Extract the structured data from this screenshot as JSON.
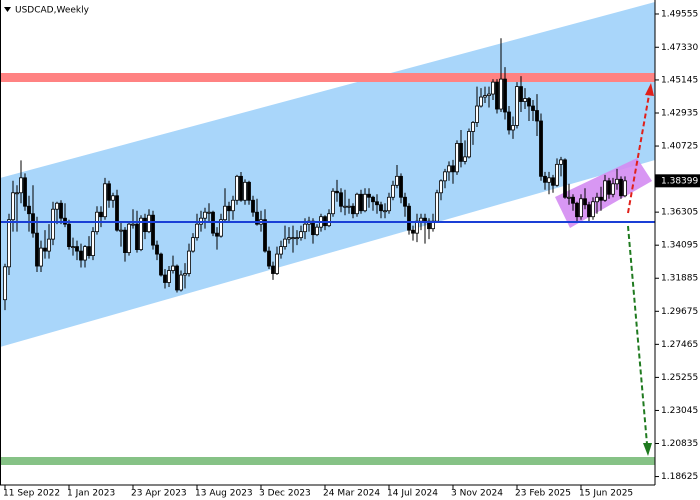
{
  "chart_data": {
    "type": "candlestick",
    "title": "USDCAD,Weekly",
    "color": "#000000",
    "categories": [
      "11 Sep 2022",
      null,
      null,
      null,
      null,
      null,
      null,
      null,
      null,
      null,
      null,
      null,
      null,
      null,
      null,
      null,
      "1 Jan 2023",
      null,
      null,
      null,
      null,
      null,
      null,
      null,
      null,
      null,
      null,
      null,
      null,
      null,
      null,
      null,
      "23 Apr 2023",
      null,
      null,
      null,
      null,
      null,
      null,
      null,
      null,
      null,
      null,
      null,
      null,
      null,
      null,
      null,
      "13 Aug 2023",
      null,
      null,
      null,
      null,
      null,
      null,
      null,
      null,
      null,
      null,
      null,
      null,
      null,
      null,
      null,
      "3 Dec 2023",
      null,
      null,
      null,
      null,
      null,
      null,
      null,
      null,
      null,
      null,
      null,
      null,
      null,
      null,
      null,
      "24 Mar 2024",
      null,
      null,
      null,
      null,
      null,
      null,
      null,
      null,
      null,
      null,
      null,
      null,
      null,
      null,
      null,
      "14 Jul 2024",
      null,
      null,
      null,
      null,
      null,
      null,
      null,
      null,
      null,
      null,
      null,
      null,
      null,
      null,
      null,
      "3 Nov 2024",
      null,
      null,
      null,
      null,
      null,
      null,
      null,
      null,
      null,
      null,
      null,
      null,
      null,
      null,
      null,
      "23 Feb 2025",
      null,
      null,
      null,
      null,
      null,
      null,
      null,
      null,
      null,
      null,
      null,
      null,
      null,
      null,
      null,
      "15 Jun 2025",
      null,
      null,
      null,
      null,
      null,
      null,
      null,
      null,
      null,
      null,
      null
    ],
    "candles": [
      [
        1.3045,
        1.3285,
        1.2975,
        1.3265
      ],
      [
        1.3265,
        1.362,
        1.321,
        1.358
      ],
      [
        1.358,
        1.384,
        1.35,
        1.376
      ],
      [
        1.376,
        1.381,
        1.35,
        1.376
      ],
      [
        1.376,
        1.3977,
        1.369,
        1.386
      ],
      [
        1.386,
        1.389,
        1.364,
        1.367
      ],
      [
        1.367,
        1.374,
        1.35,
        1.362
      ],
      [
        1.362,
        1.381,
        1.346,
        1.349
      ],
      [
        1.349,
        1.36,
        1.323,
        1.327
      ],
      [
        1.327,
        1.344,
        1.323,
        1.339
      ],
      [
        1.339,
        1.351,
        1.332,
        1.337
      ],
      [
        1.337,
        1.355,
        1.332,
        1.345
      ],
      [
        1.345,
        1.37,
        1.341,
        1.365
      ],
      [
        1.365,
        1.37,
        1.355,
        1.369
      ],
      [
        1.369,
        1.371,
        1.355,
        1.359
      ],
      [
        1.359,
        1.369,
        1.353,
        1.355
      ],
      [
        1.355,
        1.358,
        1.338,
        1.34
      ],
      [
        1.34,
        1.346,
        1.334,
        1.34
      ],
      [
        1.34,
        1.344,
        1.331,
        1.337
      ],
      [
        1.337,
        1.342,
        1.326,
        1.331
      ],
      [
        1.331,
        1.341,
        1.326,
        1.34
      ],
      [
        1.34,
        1.347,
        1.332,
        1.334
      ],
      [
        1.334,
        1.353,
        1.331,
        1.35
      ],
      [
        1.35,
        1.367,
        1.348,
        1.363
      ],
      [
        1.363,
        1.367,
        1.353,
        1.36
      ],
      [
        1.36,
        1.386,
        1.358,
        1.382
      ],
      [
        1.382,
        1.384,
        1.366,
        1.371
      ],
      [
        1.371,
        1.376,
        1.366,
        1.374
      ],
      [
        1.374,
        1.378,
        1.35,
        1.351
      ],
      [
        1.351,
        1.356,
        1.34,
        1.351
      ],
      [
        1.351,
        1.353,
        1.33,
        1.336
      ],
      [
        1.336,
        1.357,
        1.334,
        1.355
      ],
      [
        1.355,
        1.365,
        1.352,
        1.355
      ],
      [
        1.355,
        1.364,
        1.336,
        1.338
      ],
      [
        1.338,
        1.361,
        1.337,
        1.359
      ],
      [
        1.359,
        1.362,
        1.345,
        1.35
      ],
      [
        1.35,
        1.365,
        1.349,
        1.361
      ],
      [
        1.361,
        1.364,
        1.338,
        1.341
      ],
      [
        1.341,
        1.344,
        1.331,
        1.335
      ],
      [
        1.335,
        1.336,
        1.32,
        1.321
      ],
      [
        1.321,
        1.325,
        1.312,
        1.316
      ],
      [
        1.316,
        1.327,
        1.313,
        1.324
      ],
      [
        1.324,
        1.334,
        1.322,
        1.327
      ],
      [
        1.327,
        1.328,
        1.3093,
        1.311
      ],
      [
        1.311,
        1.324,
        1.31,
        1.321
      ],
      [
        1.321,
        1.329,
        1.312,
        1.322
      ],
      [
        1.322,
        1.342,
        1.32,
        1.337
      ],
      [
        1.337,
        1.349,
        1.336,
        1.346
      ],
      [
        1.346,
        1.362,
        1.344,
        1.355
      ],
      [
        1.355,
        1.364,
        1.35,
        1.359
      ],
      [
        1.359,
        1.366,
        1.352,
        1.363
      ],
      [
        1.363,
        1.369,
        1.356,
        1.363
      ],
      [
        1.363,
        1.364,
        1.347,
        1.349
      ],
      [
        1.349,
        1.353,
        1.338,
        1.347
      ],
      [
        1.347,
        1.362,
        1.346,
        1.358
      ],
      [
        1.358,
        1.379,
        1.356,
        1.367
      ],
      [
        1.367,
        1.37,
        1.357,
        1.364
      ],
      [
        1.364,
        1.374,
        1.358,
        1.371
      ],
      [
        1.371,
        1.388,
        1.368,
        1.387
      ],
      [
        1.387,
        1.3899,
        1.37,
        1.371
      ],
      [
        1.371,
        1.385,
        1.368,
        1.383
      ],
      [
        1.383,
        1.384,
        1.368,
        1.371
      ],
      [
        1.371,
        1.374,
        1.36,
        1.363
      ],
      [
        1.363,
        1.372,
        1.354,
        1.355
      ],
      [
        1.355,
        1.364,
        1.35,
        1.358
      ],
      [
        1.358,
        1.365,
        1.336,
        1.337
      ],
      [
        1.337,
        1.34,
        1.325,
        1.327
      ],
      [
        1.327,
        1.33,
        1.3178,
        1.322
      ],
      [
        1.322,
        1.34,
        1.321,
        1.335
      ],
      [
        1.335,
        1.344,
        1.332,
        1.34
      ],
      [
        1.34,
        1.354,
        1.338,
        1.345
      ],
      [
        1.345,
        1.353,
        1.342,
        1.346
      ],
      [
        1.346,
        1.354,
        1.336,
        1.346
      ],
      [
        1.346,
        1.351,
        1.341,
        1.346
      ],
      [
        1.346,
        1.354,
        1.344,
        1.35
      ],
      [
        1.35,
        1.359,
        1.345,
        1.355
      ],
      [
        1.355,
        1.36,
        1.35,
        1.357
      ],
      [
        1.357,
        1.359,
        1.342,
        1.348
      ],
      [
        1.348,
        1.355,
        1.347,
        1.353
      ],
      [
        1.353,
        1.362,
        1.35,
        1.36
      ],
      [
        1.36,
        1.361,
        1.351,
        1.354
      ],
      [
        1.354,
        1.365,
        1.353,
        1.362
      ],
      [
        1.362,
        1.379,
        1.36,
        1.377
      ],
      [
        1.377,
        1.3846,
        1.37,
        1.376
      ],
      [
        1.376,
        1.379,
        1.363,
        1.367
      ],
      [
        1.367,
        1.378,
        1.361,
        1.367
      ],
      [
        1.367,
        1.372,
        1.362,
        1.367
      ],
      [
        1.367,
        1.369,
        1.359,
        1.362
      ],
      [
        1.362,
        1.376,
        1.36,
        1.375
      ],
      [
        1.375,
        1.378,
        1.362,
        1.364
      ],
      [
        1.364,
        1.379,
        1.363,
        1.375
      ],
      [
        1.375,
        1.379,
        1.366,
        1.373
      ],
      [
        1.373,
        1.374,
        1.364,
        1.37
      ],
      [
        1.37,
        1.375,
        1.362,
        1.368
      ],
      [
        1.368,
        1.37,
        1.359,
        1.364
      ],
      [
        1.364,
        1.369,
        1.359,
        1.364
      ],
      [
        1.364,
        1.376,
        1.362,
        1.373
      ],
      [
        1.373,
        1.384,
        1.371,
        1.381
      ],
      [
        1.381,
        1.3946,
        1.379,
        1.387
      ],
      [
        1.387,
        1.389,
        1.369,
        1.373
      ],
      [
        1.373,
        1.376,
        1.36,
        1.367
      ],
      [
        1.367,
        1.369,
        1.348,
        1.351
      ],
      [
        1.351,
        1.354,
        1.344,
        1.349
      ],
      [
        1.349,
        1.362,
        1.343,
        1.357
      ],
      [
        1.357,
        1.362,
        1.351,
        1.359
      ],
      [
        1.359,
        1.362,
        1.342,
        1.357
      ],
      [
        1.357,
        1.359,
        1.345,
        1.352
      ],
      [
        1.352,
        1.362,
        1.35,
        1.357
      ],
      [
        1.357,
        1.378,
        1.356,
        1.376
      ],
      [
        1.376,
        1.385,
        1.371,
        1.384
      ],
      [
        1.384,
        1.392,
        1.379,
        1.39
      ],
      [
        1.39,
        1.397,
        1.384,
        1.394
      ],
      [
        1.394,
        1.398,
        1.382,
        1.39
      ],
      [
        1.39,
        1.411,
        1.388,
        1.409
      ],
      [
        1.409,
        1.418,
        1.393,
        1.397
      ],
      [
        1.397,
        1.411,
        1.395,
        1.4
      ],
      [
        1.4,
        1.419,
        1.399,
        1.417
      ],
      [
        1.417,
        1.424,
        1.408,
        1.423
      ],
      [
        1.423,
        1.447,
        1.42,
        1.434
      ],
      [
        1.434,
        1.446,
        1.433,
        1.44
      ],
      [
        1.44,
        1.447,
        1.436,
        1.441
      ],
      [
        1.441,
        1.447,
        1.433,
        1.442
      ],
      [
        1.442,
        1.452,
        1.438,
        1.45
      ],
      [
        1.45,
        1.452,
        1.429,
        1.432
      ],
      [
        1.432,
        1.4793,
        1.43,
        1.452
      ],
      [
        1.452,
        1.46,
        1.425,
        1.43
      ],
      [
        1.43,
        1.434,
        1.415,
        1.418
      ],
      [
        1.418,
        1.427,
        1.412,
        1.421
      ],
      [
        1.421,
        1.45,
        1.419,
        1.447
      ],
      [
        1.447,
        1.454,
        1.43,
        1.437
      ],
      [
        1.437,
        1.446,
        1.432,
        1.439
      ],
      [
        1.439,
        1.44,
        1.424,
        1.434
      ],
      [
        1.434,
        1.438,
        1.424,
        1.431
      ],
      [
        1.431,
        1.442,
        1.414,
        1.424
      ],
      [
        1.424,
        1.429,
        1.384,
        1.387
      ],
      [
        1.387,
        1.39,
        1.378,
        1.383
      ],
      [
        1.383,
        1.39,
        1.375,
        1.386
      ],
      [
        1.386,
        1.388,
        1.376,
        1.381
      ],
      [
        1.381,
        1.399,
        1.38,
        1.395
      ],
      [
        1.395,
        1.4,
        1.387,
        1.398
      ],
      [
        1.398,
        1.399,
        1.372,
        1.373
      ],
      [
        1.373,
        1.382,
        1.368,
        1.373
      ],
      [
        1.373,
        1.375,
        1.364,
        1.369
      ],
      [
        1.369,
        1.37,
        1.356,
        1.36
      ],
      [
        1.36,
        1.375,
        1.358,
        1.372
      ],
      [
        1.372,
        1.379,
        1.365,
        1.368
      ],
      [
        1.368,
        1.37,
        1.357,
        1.36
      ],
      [
        1.36,
        1.373,
        1.358,
        1.37
      ],
      [
        1.37,
        1.376,
        1.362,
        1.373
      ],
      [
        1.373,
        1.38,
        1.364,
        1.371
      ],
      [
        1.371,
        1.388,
        1.37,
        1.384
      ],
      [
        1.384,
        1.386,
        1.372,
        1.375
      ],
      [
        1.375,
        1.386,
        1.373,
        1.382
      ],
      [
        1.382,
        1.392,
        1.378,
        1.385
      ],
      [
        1.385,
        1.387,
        1.372,
        1.374
      ],
      [
        1.374,
        1.387,
        1.373,
        1.38399
      ]
    ],
    "ylim": [
      1.1806,
      1.5049
    ],
    "yticks": [
      1.49555,
      {
        "value": 1.4733,
        "label": "1.47330"
      },
      1.45145,
      1.42935,
      1.40725,
      1.36305,
      1.34095,
      1.31885,
      1.29675,
      1.27465,
      1.25255,
      1.23045,
      1.20835,
      1.18625
    ],
    "grid": false
  }
}
